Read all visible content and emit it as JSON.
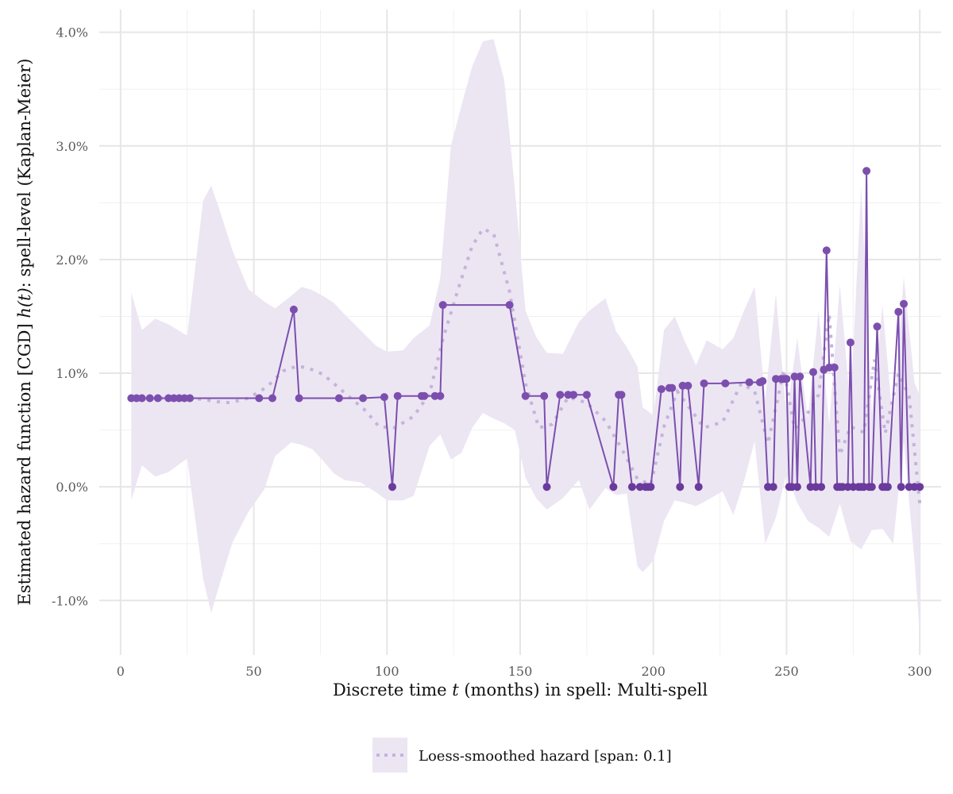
{
  "colors": {
    "line": "#7c4fae",
    "point_dark": "#6a3a9c",
    "loess": "#c5b3dc",
    "band": "#ece6f3",
    "grid_major": "#e6e6e6",
    "grid_minor": "#f0f0f0"
  },
  "chart_data": {
    "type": "line",
    "xlabel_pre": "Discrete time ",
    "xlabel_var": "t",
    "xlabel_post": " (months) in spell: Multi-spell",
    "ylabel_pre": "Estimated hazard function [CGD] ",
    "ylabel_var": "h(t)",
    "ylabel_post": ": spell-level (Kaplan-Meier)",
    "xlim": [
      -8,
      308
    ],
    "ylim": [
      -1.48,
      4.2
    ],
    "x_ticks": [
      0,
      50,
      100,
      150,
      200,
      250,
      300
    ],
    "x_tick_labels": [
      "0",
      "50",
      "100",
      "150",
      "200",
      "250",
      "300"
    ],
    "y_ticks": [
      -1,
      0,
      1,
      2,
      3,
      4
    ],
    "y_tick_labels": [
      "-1.0%",
      "0.0%",
      "1.0%",
      "2.0%",
      "3.0%",
      "4.0%"
    ],
    "grid": true,
    "legend_position": "bottom",
    "legend_label": "Loess-smoothed hazard [span: 0.1]",
    "series": [
      {
        "type": "line-points",
        "x": [
          4,
          6,
          8,
          11,
          14,
          18,
          20,
          22,
          24,
          26,
          52,
          57,
          65,
          67,
          82,
          91,
          99,
          102,
          104,
          113,
          114,
          118,
          120,
          121,
          146,
          152,
          159,
          160,
          165,
          168,
          170,
          175,
          185,
          187,
          188,
          192,
          195,
          197,
          198,
          199,
          203,
          206,
          207,
          210,
          211,
          213,
          217,
          219,
          227,
          236,
          240,
          241,
          243,
          245,
          246,
          248,
          249,
          250,
          251,
          252,
          253,
          254,
          255,
          259,
          260,
          261,
          263,
          264,
          265,
          266,
          268,
          269,
          270,
          271,
          273,
          274,
          275,
          277,
          278,
          279,
          280,
          281,
          282,
          284,
          286,
          287,
          288,
          292,
          293,
          294,
          296,
          298,
          300
        ],
        "y": [
          0.78,
          0.78,
          0.78,
          0.78,
          0.78,
          0.78,
          0.78,
          0.78,
          0.78,
          0.78,
          0.78,
          0.78,
          1.56,
          0.78,
          0.78,
          0.78,
          0.79,
          0.0,
          0.8,
          0.8,
          0.8,
          0.8,
          0.8,
          1.6,
          1.6,
          0.8,
          0.8,
          0.0,
          0.81,
          0.81,
          0.81,
          0.81,
          0.0,
          0.81,
          0.81,
          0.0,
          0.0,
          0.0,
          0.0,
          0.0,
          0.86,
          0.87,
          0.87,
          0.0,
          0.89,
          0.89,
          0.0,
          0.91,
          0.91,
          0.92,
          0.92,
          0.93,
          0.0,
          0.0,
          0.95,
          0.95,
          0.95,
          0.95,
          0.0,
          0.0,
          0.97,
          0.0,
          0.97,
          0.0,
          1.01,
          0.0,
          0.0,
          1.03,
          2.08,
          1.05,
          1.05,
          0.0,
          0.0,
          0.0,
          0.0,
          1.27,
          0.0,
          0.0,
          0.0,
          0.0,
          2.78,
          0.0,
          0.0,
          1.41,
          0.0,
          0.0,
          0.0,
          1.54,
          0.0,
          1.61,
          0.0,
          0.0,
          0.0
        ]
      },
      {
        "name": "Loess-smoothed hazard [span: 0.1]",
        "type": "loess",
        "x": [
          4,
          15,
          25,
          31,
          36,
          41,
          48,
          55,
          61,
          66,
          70,
          76,
          80,
          86,
          92,
          97,
          103,
          110,
          116,
          121,
          127,
          132,
          136,
          140,
          146,
          152,
          157,
          162,
          168,
          175,
          182,
          188,
          194,
          199,
          204,
          209,
          214,
          219,
          226,
          233,
          238,
          243,
          249,
          253,
          257,
          262,
          266,
          270,
          274,
          279,
          283,
          287,
          292,
          296,
          300
        ],
        "y": [
          0.77,
          0.78,
          0.78,
          0.77,
          0.75,
          0.74,
          0.78,
          0.88,
          1.02,
          1.06,
          1.05,
          0.99,
          0.91,
          0.79,
          0.67,
          0.53,
          0.52,
          0.62,
          0.82,
          1.3,
          1.76,
          2.12,
          2.27,
          2.23,
          1.72,
          0.91,
          0.52,
          0.55,
          0.79,
          0.74,
          0.58,
          0.34,
          0.07,
          0.02,
          0.53,
          0.84,
          0.68,
          0.52,
          0.57,
          0.91,
          0.84,
          0.38,
          1.03,
          0.51,
          0.61,
          0.81,
          1.52,
          0.28,
          0.53,
          0.48,
          1.12,
          0.47,
          1.0,
          0.8,
          -0.15
        ]
      }
    ],
    "confidence_band": {
      "x": [
        4,
        8,
        13,
        18,
        25,
        31,
        34,
        37,
        42,
        48,
        54,
        58,
        64,
        68,
        72,
        76,
        80,
        84,
        90,
        96,
        100,
        106,
        110,
        116,
        120,
        124,
        128,
        132,
        136,
        140,
        144,
        148,
        152,
        156,
        160,
        166,
        172,
        176,
        182,
        186,
        190,
        194,
        196,
        200,
        204,
        208,
        212,
        216,
        220,
        226,
        230,
        234,
        238,
        242,
        246,
        250,
        254,
        258,
        262,
        266,
        270,
        274,
        278,
        282,
        286,
        290,
        294,
        298,
        300
      ],
      "upper": [
        1.71,
        1.38,
        1.48,
        1.43,
        1.33,
        2.52,
        2.65,
        2.45,
        2.08,
        1.74,
        1.63,
        1.57,
        1.68,
        1.76,
        1.73,
        1.68,
        1.62,
        1.52,
        1.38,
        1.24,
        1.19,
        1.2,
        1.31,
        1.42,
        1.84,
        3.0,
        3.36,
        3.7,
        3.92,
        3.94,
        3.58,
        2.62,
        1.55,
        1.32,
        1.18,
        1.17,
        1.45,
        1.55,
        1.66,
        1.37,
        1.23,
        1.06,
        0.7,
        0.63,
        1.38,
        1.5,
        1.27,
        1.07,
        1.29,
        1.21,
        1.31,
        1.55,
        1.76,
        0.77,
        1.7,
        0.62,
        1.31,
        0.6,
        1.55,
        0.55,
        1.78,
        0.7,
        2.65,
        0.65,
        1.6,
        0.55,
        1.85,
        0.92,
        0.8
      ],
      "lower": [
        -0.12,
        0.19,
        0.09,
        0.13,
        0.25,
        -0.81,
        -1.11,
        -0.87,
        -0.49,
        -0.22,
        -0.02,
        0.27,
        0.39,
        0.37,
        0.33,
        0.23,
        0.12,
        0.06,
        0.04,
        -0.05,
        -0.12,
        -0.12,
        -0.08,
        0.36,
        0.46,
        0.24,
        0.3,
        0.52,
        0.65,
        0.6,
        0.56,
        0.5,
        0.08,
        -0.1,
        -0.2,
        -0.1,
        0.06,
        -0.2,
        -0.01,
        -0.07,
        -0.06,
        -0.7,
        -0.75,
        -0.65,
        -0.3,
        -0.12,
        -0.14,
        -0.17,
        -0.12,
        -0.04,
        -0.25,
        0.05,
        0.4,
        -0.5,
        -0.27,
        0.12,
        -0.14,
        -0.3,
        -0.36,
        -0.44,
        -0.15,
        -0.48,
        -0.55,
        -0.38,
        -0.37,
        -0.5,
        0.4,
        -0.65,
        -1.3
      ]
    }
  }
}
